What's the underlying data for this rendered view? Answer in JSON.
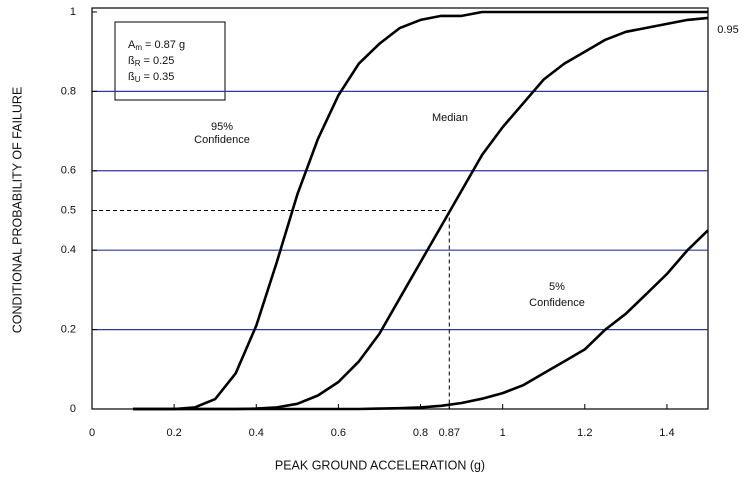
{
  "chart_data": {
    "type": "line",
    "x_label": "PEAK GROUND ACCELERATION (g)",
    "y_label": "CONDITIONAL PROBABILITY OF FAILURE",
    "x": [
      0.1,
      0.15,
      0.2,
      0.25,
      0.3,
      0.35,
      0.4,
      0.45,
      0.5,
      0.55,
      0.6,
      0.65,
      0.7,
      0.75,
      0.8,
      0.85,
      0.9,
      0.95,
      1.0,
      1.05,
      1.1,
      1.15,
      1.2,
      1.25,
      1.3,
      1.35,
      1.4,
      1.45,
      1.5
    ],
    "series": [
      {
        "label_lines": [
          "95%",
          "Confidence"
        ],
        "color": "#000000",
        "values": [
          0,
          0,
          0,
          0.004,
          0.025,
          0.09,
          0.21,
          0.37,
          0.54,
          0.68,
          0.79,
          0.87,
          0.92,
          0.96,
          0.98,
          0.99,
          0.99,
          1,
          1,
          1,
          1,
          1,
          1,
          1,
          1,
          1,
          1,
          1,
          1
        ]
      },
      {
        "label_lines": [
          "Median"
        ],
        "color": "#000000",
        "values": [
          0,
          0,
          0,
          0,
          0,
          0,
          0.001,
          0.004,
          0.013,
          0.034,
          0.068,
          0.12,
          0.19,
          0.28,
          0.37,
          0.46,
          0.55,
          0.64,
          0.71,
          0.77,
          0.83,
          0.87,
          0.9,
          0.93,
          0.95,
          0.96,
          0.97,
          0.98,
          0.985
        ]
      },
      {
        "label_lines": [
          "5%",
          "Confidence"
        ],
        "color": "#000000",
        "values": [
          0,
          0,
          0,
          0,
          0,
          0,
          0,
          0,
          0,
          0,
          0,
          0,
          0.001,
          0.002,
          0.004,
          0.008,
          0.015,
          0.026,
          0.04,
          0.06,
          0.09,
          0.12,
          0.15,
          0.2,
          0.24,
          0.29,
          0.34,
          0.4,
          0.45
        ]
      }
    ],
    "xlim": [
      0,
      1.5
    ],
    "ylim": [
      0,
      1.01
    ],
    "xticks": [
      0,
      0.2,
      0.4,
      0.6,
      0.8,
      0.87,
      1,
      1.2,
      1.4
    ],
    "yticks": [
      0,
      0.2,
      0.4,
      0.5,
      0.6,
      0.8,
      1
    ],
    "grid_values": [
      0.2,
      0.4,
      0.6,
      0.8
    ],
    "grid_color": "#2b3a9c",
    "reference": {
      "x": 0.87,
      "y": 0.5
    },
    "params": [
      {
        "symbol": "A",
        "subscript": "m",
        "value": "= 0.87 g"
      },
      {
        "symbol": "ß",
        "subscript": "R",
        "value": "= 0.25"
      },
      {
        "symbol": "ß",
        "subscript": "U",
        "value": "= 0.35"
      }
    ],
    "corner_label": "0.95"
  }
}
